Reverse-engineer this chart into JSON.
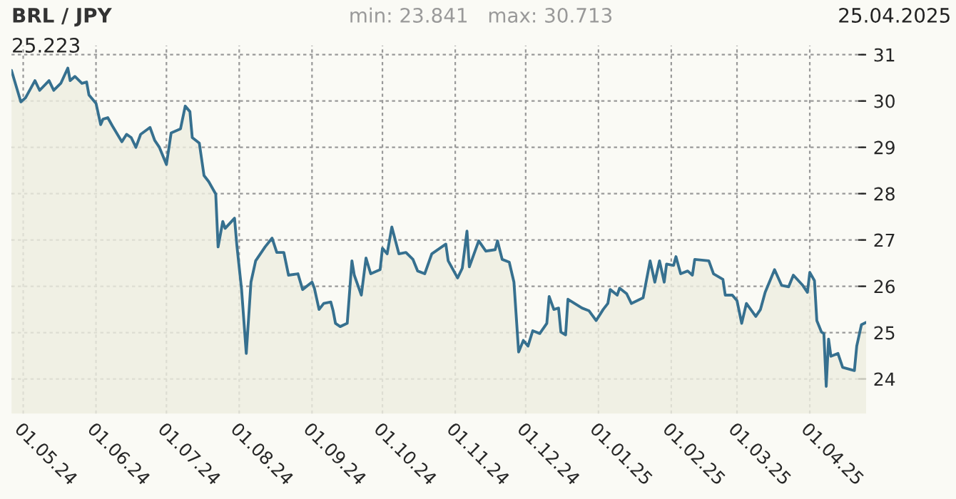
{
  "chart_data": {
    "type": "area",
    "title": "BRL / JPY",
    "annotations": [
      "min: 23.841",
      "max: 30.713",
      "25.04.2025",
      "25.223"
    ],
    "x": [
      "2024-04-26",
      "2024-04-30",
      "2024-05-02",
      "2024-05-06",
      "2024-05-08",
      "2024-05-12",
      "2024-05-14",
      "2024-05-17",
      "2024-05-20",
      "2024-05-21",
      "2024-05-23",
      "2024-05-26",
      "2024-05-28",
      "2024-05-29",
      "2024-06-01",
      "2024-06-03",
      "2024-06-04",
      "2024-06-06",
      "2024-06-08",
      "2024-06-12",
      "2024-06-14",
      "2024-06-16",
      "2024-06-18",
      "2024-06-20",
      "2024-06-24",
      "2024-06-26",
      "2024-06-28",
      "2024-07-01",
      "2024-07-03",
      "2024-07-07",
      "2024-07-09",
      "2024-07-11",
      "2024-07-12",
      "2024-07-15",
      "2024-07-17",
      "2024-07-19",
      "2024-07-22",
      "2024-07-23",
      "2024-07-25",
      "2024-07-26",
      "2024-07-30",
      "2024-07-31",
      "2024-08-02",
      "2024-08-04",
      "2024-08-05",
      "2024-08-06",
      "2024-08-08",
      "2024-08-12",
      "2024-08-15",
      "2024-08-17",
      "2024-08-20",
      "2024-08-22",
      "2024-08-26",
      "2024-08-28",
      "2024-09-01",
      "2024-09-02",
      "2024-09-04",
      "2024-09-06",
      "2024-09-09",
      "2024-09-10",
      "2024-09-11",
      "2024-09-13",
      "2024-09-16",
      "2024-09-18",
      "2024-09-19",
      "2024-09-22",
      "2024-09-24",
      "2024-09-26",
      "2024-09-30",
      "2024-10-01",
      "2024-10-03",
      "2024-10-05",
      "2024-10-08",
      "2024-10-11",
      "2024-10-14",
      "2024-10-16",
      "2024-10-19",
      "2024-10-22",
      "2024-10-28",
      "2024-10-29",
      "2024-11-02",
      "2024-11-04",
      "2024-11-06",
      "2024-11-07",
      "2024-11-11",
      "2024-11-14",
      "2024-11-18",
      "2024-11-19",
      "2024-11-21",
      "2024-11-24",
      "2024-11-26",
      "2024-11-28",
      "2024-11-30",
      "2024-12-02",
      "2024-12-04",
      "2024-12-07",
      "2024-12-10",
      "2024-12-11",
      "2024-12-13",
      "2024-12-15",
      "2024-12-16",
      "2024-12-18",
      "2024-12-19",
      "2024-12-25",
      "2024-12-28",
      "2024-12-31",
      "2025-01-03",
      "2025-01-05",
      "2025-01-06",
      "2025-01-09",
      "2025-01-10",
      "2025-01-13",
      "2025-01-15",
      "2025-01-20",
      "2025-01-23",
      "2025-01-25",
      "2025-01-27",
      "2025-01-29",
      "2025-01-30",
      "2025-02-02",
      "2025-02-03",
      "2025-02-05",
      "2025-02-08",
      "2025-02-10",
      "2025-02-11",
      "2025-02-17",
      "2025-02-19",
      "2025-02-23",
      "2025-02-24",
      "2025-02-27",
      "2025-03-01",
      "2025-03-03",
      "2025-03-05",
      "2025-03-09",
      "2025-03-11",
      "2025-03-13",
      "2025-03-17",
      "2025-03-20",
      "2025-03-23",
      "2025-03-25",
      "2025-03-29",
      "2025-03-31",
      "2025-04-01",
      "2025-04-03",
      "2025-04-04",
      "2025-04-06",
      "2025-04-07",
      "2025-04-08",
      "2025-04-09",
      "2025-04-10",
      "2025-04-13",
      "2025-04-15",
      "2025-04-20",
      "2025-04-21",
      "2025-04-23",
      "2025-04-25"
    ],
    "series": [
      {
        "color": "#36708f",
        "values": [
          30.66,
          29.98,
          30.07,
          30.44,
          30.23,
          30.44,
          30.23,
          30.38,
          30.71,
          30.44,
          30.53,
          30.38,
          30.41,
          30.13,
          29.95,
          29.49,
          29.61,
          29.64,
          29.46,
          29.12,
          29.28,
          29.21,
          29.0,
          29.28,
          29.43,
          29.15,
          29.0,
          28.63,
          29.31,
          29.4,
          29.89,
          29.77,
          29.21,
          29.09,
          28.39,
          28.26,
          27.99,
          26.85,
          27.4,
          27.25,
          27.47,
          26.88,
          25.93,
          24.55,
          25.32,
          26.09,
          26.55,
          26.85,
          27.04,
          26.73,
          26.73,
          26.24,
          26.27,
          25.93,
          26.09,
          25.96,
          25.5,
          25.63,
          25.66,
          25.47,
          25.2,
          25.13,
          25.2,
          26.55,
          26.24,
          25.81,
          26.61,
          26.27,
          26.36,
          26.82,
          26.7,
          27.28,
          26.7,
          26.73,
          26.58,
          26.33,
          26.27,
          26.7,
          26.91,
          26.55,
          26.18,
          26.39,
          27.19,
          26.42,
          26.98,
          26.76,
          26.79,
          26.98,
          26.58,
          26.52,
          26.09,
          24.58,
          24.83,
          24.71,
          25.04,
          24.98,
          25.2,
          25.78,
          25.5,
          25.53,
          25.01,
          24.95,
          25.72,
          25.53,
          25.47,
          25.26,
          25.5,
          25.63,
          25.93,
          25.81,
          25.96,
          25.84,
          25.63,
          25.75,
          26.55,
          26.09,
          26.55,
          26.09,
          26.48,
          26.45,
          26.64,
          26.27,
          26.33,
          26.24,
          26.58,
          26.55,
          26.27,
          26.15,
          25.81,
          25.81,
          25.69,
          25.2,
          25.63,
          25.35,
          25.5,
          25.87,
          26.36,
          26.02,
          25.99,
          26.24,
          26.02,
          25.87,
          26.3,
          26.12,
          25.26,
          25.01,
          24.98,
          23.84,
          24.86,
          24.49,
          24.55,
          24.25,
          24.18,
          24.71,
          25.17,
          25.22
        ]
      }
    ],
    "xlim": [
      "2024-04-26",
      "2025-04-25"
    ],
    "xticks": [
      {
        "value": "2024-05-01",
        "label": "01.05.24"
      },
      {
        "value": "2024-06-01",
        "label": "01.06.24"
      },
      {
        "value": "2024-07-01",
        "label": "01.07.24"
      },
      {
        "value": "2024-08-01",
        "label": "01.08.24"
      },
      {
        "value": "2024-09-01",
        "label": "01.09.24"
      },
      {
        "value": "2024-10-01",
        "label": "01.10.24"
      },
      {
        "value": "2024-11-01",
        "label": "01.11.24"
      },
      {
        "value": "2024-12-01",
        "label": "01.12.24"
      },
      {
        "value": "2025-01-01",
        "label": "01.01.25"
      },
      {
        "value": "2025-02-01",
        "label": "01.02.25"
      },
      {
        "value": "2025-03-01",
        "label": "01.03.25"
      },
      {
        "value": "2025-04-01",
        "label": "01.04.25"
      }
    ],
    "ylim": [
      23.25,
      31.2
    ],
    "yticks": [
      24,
      25,
      26,
      27,
      28,
      29,
      30,
      31
    ],
    "grid": true
  }
}
